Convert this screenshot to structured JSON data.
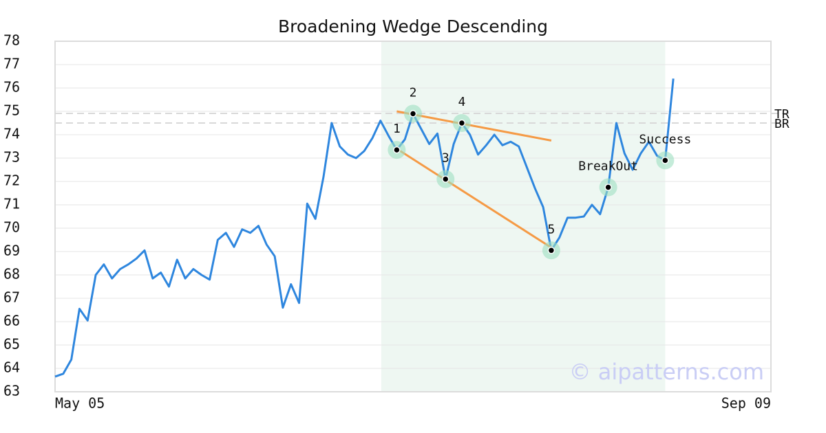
{
  "chart_data": {
    "type": "line",
    "title": "Broadening Wedge Descending",
    "x": [
      0,
      1,
      2,
      3,
      4,
      5,
      6,
      7,
      8,
      9,
      10,
      11,
      12,
      13,
      14,
      15,
      16,
      17,
      18,
      19,
      20,
      21,
      22,
      23,
      24,
      25,
      26,
      27,
      28,
      29,
      30,
      31,
      32,
      33,
      34,
      35,
      36,
      37,
      38,
      39,
      40,
      41,
      42,
      43,
      44,
      45,
      46,
      47,
      48,
      49,
      50,
      51,
      52,
      53,
      54,
      55,
      56,
      57,
      58,
      59,
      60,
      61,
      62,
      63,
      64,
      65,
      66,
      67,
      68,
      69,
      70,
      71,
      72,
      73,
      74,
      75,
      76
    ],
    "series": [
      {
        "color": "#2e86de",
        "values": [
          63.65,
          63.77,
          64.38,
          66.55,
          66.05,
          68.0,
          68.45,
          67.85,
          68.25,
          68.45,
          68.7,
          69.05,
          67.85,
          68.1,
          67.5,
          68.65,
          67.85,
          68.25,
          68.0,
          67.8,
          69.5,
          69.8,
          69.2,
          69.95,
          69.8,
          70.1,
          69.3,
          68.8,
          66.6,
          67.6,
          66.8,
          71.05,
          70.4,
          72.2,
          74.5,
          73.5,
          73.15,
          73.0,
          73.3,
          73.85,
          74.6,
          73.95,
          73.35,
          73.8,
          74.9,
          74.25,
          73.6,
          74.05,
          72.1,
          73.6,
          74.5,
          74.0,
          73.15,
          73.55,
          74.0,
          73.55,
          73.7,
          73.5,
          72.6,
          71.7,
          70.9,
          69.05,
          69.6,
          70.45,
          70.45,
          70.5,
          71.0,
          70.6,
          71.75,
          74.5,
          73.2,
          72.5,
          73.2,
          73.7,
          73.1,
          72.9,
          76.4
        ]
      }
    ],
    "xlim": [
      0,
      88
    ],
    "xticks": [
      {
        "value": 0,
        "label": "May 05"
      },
      {
        "value": 88,
        "label": "Sep 09"
      }
    ],
    "ylim": [
      63,
      78
    ],
    "yticks": [
      63,
      64,
      65,
      66,
      67,
      68,
      69,
      70,
      71,
      72,
      73,
      74,
      75,
      76,
      77,
      78
    ],
    "grid": true,
    "highlight": {
      "xlim": [
        40.1,
        75
      ],
      "color": "#eef7f2"
    },
    "levels": [
      {
        "label": "TR",
        "value": 74.91
      },
      {
        "label": "BR",
        "value": 74.5
      }
    ],
    "trendlines": [
      {
        "x": [
          42,
          61
        ],
        "y": [
          75.0,
          73.75
        ],
        "color": "#f59a45"
      },
      {
        "x": [
          42,
          61
        ],
        "y": [
          73.4,
          69.17
        ],
        "color": "#f59a45"
      }
    ],
    "points": [
      {
        "label": "1",
        "x": 42,
        "y": 73.35
      },
      {
        "label": "2",
        "x": 44,
        "y": 74.9
      },
      {
        "label": "3",
        "x": 48,
        "y": 72.1
      },
      {
        "label": "4",
        "x": 50,
        "y": 74.5
      },
      {
        "label": "5",
        "x": 61,
        "y": 69.05
      },
      {
        "label": "BreakOut",
        "x": 68,
        "y": 71.75
      },
      {
        "label": "Success",
        "x": 75,
        "y": 72.9
      }
    ],
    "watermark": "© aipatterns.com"
  }
}
